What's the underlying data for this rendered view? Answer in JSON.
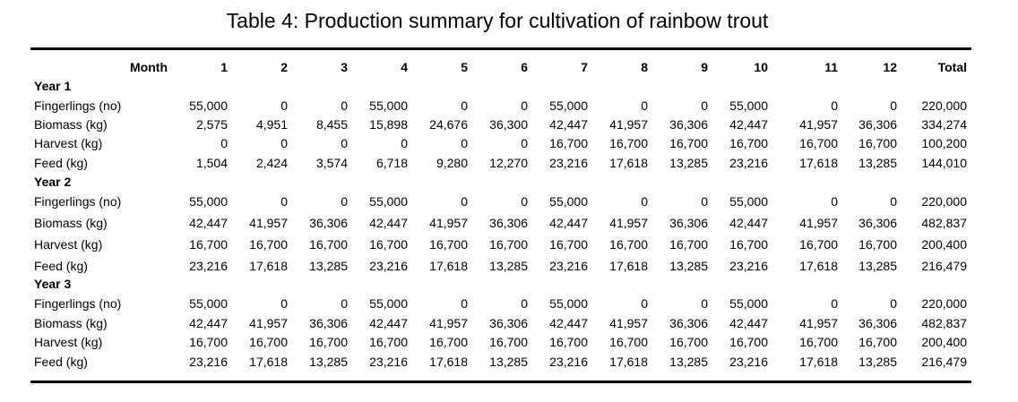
{
  "title": "Table 4:  Production summary for cultivation of rainbow trout",
  "header": {
    "month_label": "Month",
    "months": [
      "1",
      "2",
      "3",
      "4",
      "5",
      "6",
      "7",
      "8",
      "9",
      "10",
      "11",
      "12"
    ],
    "total_label": "Total"
  },
  "years": [
    {
      "label": "Year 1",
      "rows": [
        {
          "label": "Fingerlings (no)",
          "values": [
            "55,000",
            "0",
            "0",
            "55,000",
            "0",
            "0",
            "55,000",
            "0",
            "0",
            "55,000",
            "0",
            "0"
          ],
          "total": "220,000"
        },
        {
          "label": "Biomass (kg)",
          "values": [
            "2,575",
            "4,951",
            "8,455",
            "15,898",
            "24,676",
            "36,300",
            "42,447",
            "41,957",
            "36,306",
            "42,447",
            "41,957",
            "36,306"
          ],
          "total": "334,274"
        },
        {
          "label": "Harvest (kg)",
          "values": [
            "0",
            "0",
            "0",
            "0",
            "0",
            "0",
            "16,700",
            "16,700",
            "16,700",
            "16,700",
            "16,700",
            "16,700"
          ],
          "total": "100,200"
        },
        {
          "label": "Feed (kg)",
          "values": [
            "1,504",
            "2,424",
            "3,574",
            "6,718",
            "9,280",
            "12,270",
            "23,216",
            "17,618",
            "13,285",
            "23,216",
            "17,618",
            "13,285"
          ],
          "total": "144,010"
        }
      ]
    },
    {
      "label": "Year 2",
      "rows": [
        {
          "label": "Fingerlings (no)",
          "values": [
            "55,000",
            "0",
            "0",
            "55,000",
            "0",
            "0",
            "55,000",
            "0",
            "0",
            "55,000",
            "0",
            "0"
          ],
          "total": "220,000"
        },
        {
          "label": "Biomass (kg)",
          "values": [
            "42,447",
            "41,957",
            "36,306",
            "42,447",
            "41,957",
            "36,306",
            "42,447",
            "41,957",
            "36,306",
            "42,447",
            "41,957",
            "36,306"
          ],
          "total": "482,837"
        },
        {
          "label": "Harvest (kg)",
          "values": [
            "16,700",
            "16,700",
            "16,700",
            "16,700",
            "16,700",
            "16,700",
            "16,700",
            "16,700",
            "16,700",
            "16,700",
            "16,700",
            "16,700"
          ],
          "total": "200,400"
        },
        {
          "label": "Feed (kg)",
          "values": [
            "23,216",
            "17,618",
            "13,285",
            "23,216",
            "17,618",
            "13,285",
            "23,216",
            "17,618",
            "13,285",
            "23,216",
            "17,618",
            "13,285"
          ],
          "total": "216,479"
        }
      ]
    },
    {
      "label": "Year 3",
      "rows": [
        {
          "label": "Fingerlings (no)",
          "values": [
            "55,000",
            "0",
            "0",
            "55,000",
            "0",
            "0",
            "55,000",
            "0",
            "0",
            "55,000",
            "0",
            "0"
          ],
          "total": "220,000"
        },
        {
          "label": "Biomass (kg)",
          "values": [
            "42,447",
            "41,957",
            "36,306",
            "42,447",
            "41,957",
            "36,306",
            "42,447",
            "41,957",
            "36,306",
            "42,447",
            "41,957",
            "36,306"
          ],
          "total": "482,837"
        },
        {
          "label": "Harvest (kg)",
          "values": [
            "16,700",
            "16,700",
            "16,700",
            "16,700",
            "16,700",
            "16,700",
            "16,700",
            "16,700",
            "16,700",
            "16,700",
            "16,700",
            "16,700"
          ],
          "total": "200,400"
        },
        {
          "label": "Feed (kg)",
          "values": [
            "23,216",
            "17,618",
            "13,285",
            "23,216",
            "17,618",
            "13,285",
            "23,216",
            "17,618",
            "13,285",
            "23,216",
            "17,618",
            "13,285"
          ],
          "total": "216,479"
        }
      ]
    }
  ]
}
